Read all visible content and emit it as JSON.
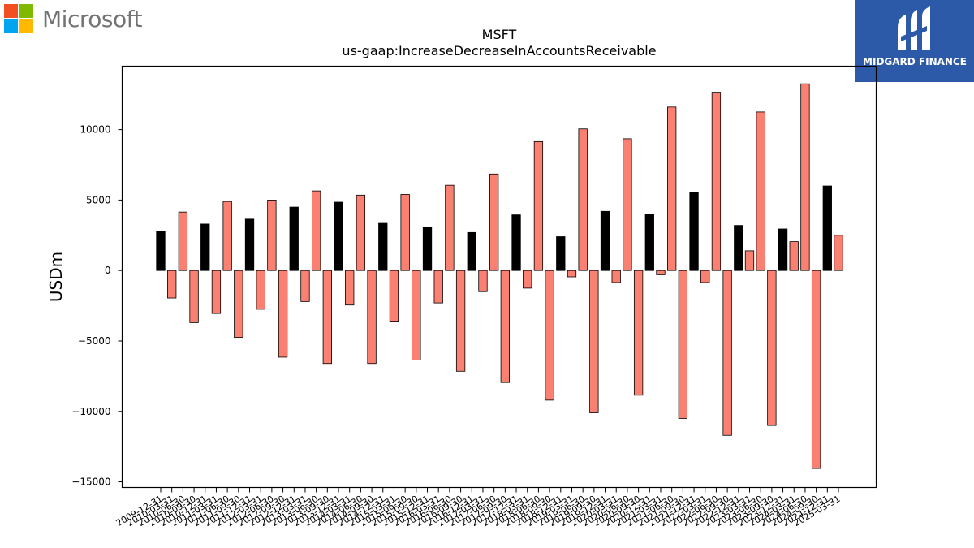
{
  "logos": {
    "microsoft": {
      "wordmark": "Microsoft",
      "icon": "microsoft-windows-logo",
      "colors": [
        "#f25022",
        "#7fba00",
        "#00a4ef",
        "#ffb900"
      ]
    },
    "midgard": {
      "name": "MIDGARD FINANCE",
      "icon": "midgard-logo",
      "background": "#2d5aa8"
    }
  },
  "chart_data": {
    "type": "bar",
    "title": "MSFT",
    "subtitle": "us-gaap:IncreaseDecreaseInAccountsReceivable",
    "ylabel": "USDm",
    "xlabel": "",
    "ylim": [
      -15400,
      14500
    ],
    "yticks": [
      -15000,
      -10000,
      -5000,
      0,
      5000,
      10000
    ],
    "grid": false,
    "legend": "none",
    "colors": {
      "annual": "#000000",
      "quarterly": "#fa8072",
      "edge": "#000000"
    },
    "categories": [
      "2009-12-31",
      "2010-03-31",
      "2010-06-30",
      "2010-09-30",
      "2010-12-31",
      "2011-03-31",
      "2011-06-30",
      "2011-09-30",
      "2011-12-31",
      "2012-03-31",
      "2012-06-30",
      "2012-09-30",
      "2012-12-31",
      "2013-03-31",
      "2013-06-30",
      "2013-09-30",
      "2013-12-31",
      "2014-03-31",
      "2014-06-30",
      "2014-09-30",
      "2014-12-31",
      "2015-03-31",
      "2015-06-30",
      "2015-09-30",
      "2015-12-31",
      "2016-03-31",
      "2016-06-30",
      "2016-09-30",
      "2016-12-31",
      "2017-03-31",
      "2017-06-30",
      "2017-09-30",
      "2017-12-31",
      "2018-03-31",
      "2018-06-30",
      "2018-09-30",
      "2018-12-31",
      "2019-03-31",
      "2019-06-30",
      "2019-09-30",
      "2019-12-31",
      "2020-03-31",
      "2020-06-30",
      "2020-09-30",
      "2020-12-31",
      "2021-03-31",
      "2021-06-30",
      "2021-09-30",
      "2021-12-31",
      "2022-03-31",
      "2022-06-30",
      "2022-09-30",
      "2022-12-31",
      "2023-03-31",
      "2023-06-30",
      "2023-09-30",
      "2023-12-31",
      "2024-03-31",
      "2024-06-30",
      "2024-09-30",
      "2024-12-31",
      "2025-03-31"
    ],
    "series": [
      {
        "values": [
          2800,
          -1950,
          4150,
          -3700,
          3300,
          -3050,
          4900,
          -4750,
          3650,
          -2750,
          5000,
          -6150,
          4500,
          -2200,
          5650,
          -6600,
          4850,
          -2450,
          5350,
          -6600,
          3350,
          -3650,
          5400,
          -6350,
          3100,
          -2300,
          6050,
          -7150,
          2700,
          -1500,
          6850,
          -7950,
          3950,
          -1250,
          9150,
          -9200,
          2400,
          -450,
          10050,
          -10100,
          4200,
          -850,
          9350,
          -8850,
          4000,
          -300,
          11600,
          -10500,
          5550,
          -850,
          12650,
          -11700,
          3200,
          1400,
          11250,
          -11000,
          2950,
          2050,
          13250,
          -14050,
          6000,
          2500
        ],
        "types": [
          "annual",
          "quarterly",
          "quarterly",
          "quarterly",
          "annual",
          "quarterly",
          "quarterly",
          "quarterly",
          "annual",
          "quarterly",
          "quarterly",
          "quarterly",
          "annual",
          "quarterly",
          "quarterly",
          "quarterly",
          "annual",
          "quarterly",
          "quarterly",
          "quarterly",
          "annual",
          "quarterly",
          "quarterly",
          "quarterly",
          "annual",
          "quarterly",
          "quarterly",
          "quarterly",
          "annual",
          "quarterly",
          "quarterly",
          "quarterly",
          "annual",
          "quarterly",
          "quarterly",
          "quarterly",
          "annual",
          "quarterly",
          "quarterly",
          "quarterly",
          "annual",
          "quarterly",
          "quarterly",
          "quarterly",
          "annual",
          "quarterly",
          "quarterly",
          "quarterly",
          "annual",
          "quarterly",
          "quarterly",
          "quarterly",
          "annual",
          "quarterly",
          "quarterly",
          "quarterly",
          "annual",
          "quarterly",
          "quarterly",
          "quarterly",
          "annual",
          "quarterly"
        ]
      }
    ]
  }
}
